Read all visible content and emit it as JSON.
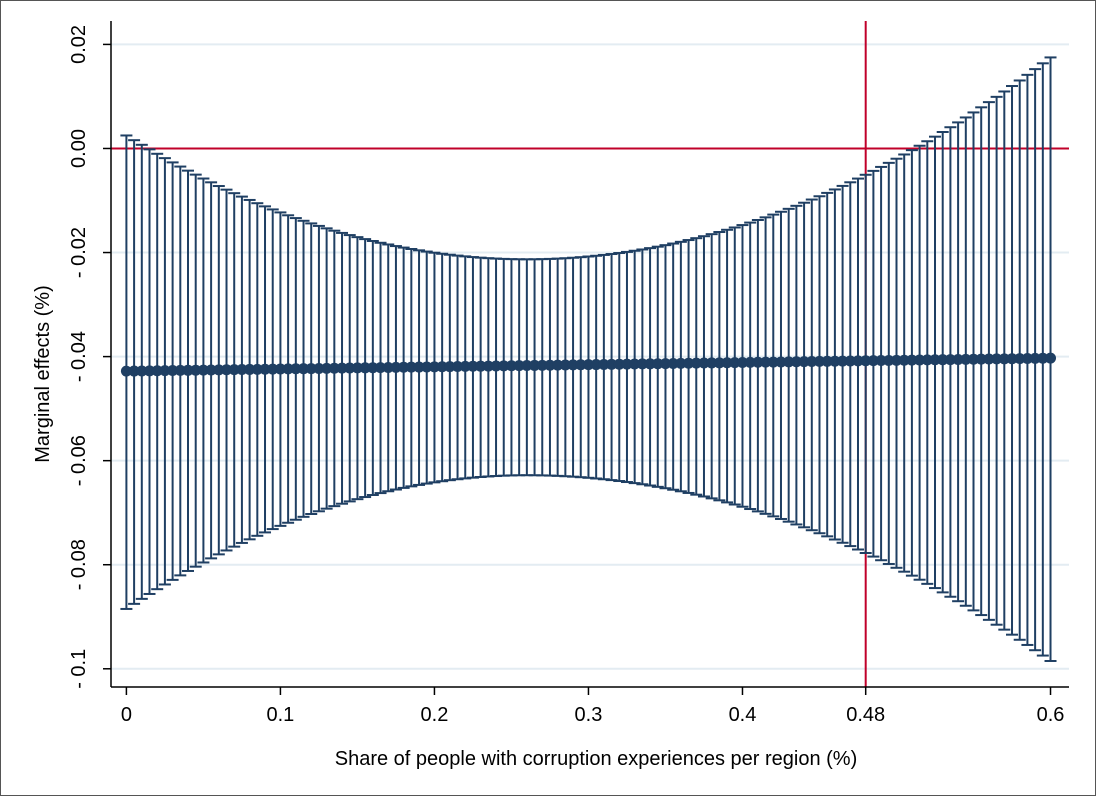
{
  "chart_data": {
    "type": "scatter",
    "xlabel": "Share of people with corruption experiences per region (%)",
    "ylabel": "Marginal effects (%)",
    "xlim": [
      -0.01,
      0.612
    ],
    "ylim": [
      -0.1035,
      0.0245
    ],
    "x_ticks": [
      {
        "value": 0,
        "label": "0"
      },
      {
        "value": 0.1,
        "label": "0.1"
      },
      {
        "value": 0.2,
        "label": "0.2"
      },
      {
        "value": 0.3,
        "label": "0.3"
      },
      {
        "value": 0.4,
        "label": "0.4"
      },
      {
        "value": 0.48,
        "label": "0.48"
      },
      {
        "value": 0.6,
        "label": "0.6"
      }
    ],
    "y_ticks": [
      {
        "value": 0.02,
        "label": "0.02"
      },
      {
        "value": 0.0,
        "label": "0.00"
      },
      {
        "value": -0.02,
        "label": "- 0.02"
      },
      {
        "value": -0.04,
        "label": "- 0.04"
      },
      {
        "value": -0.06,
        "label": "- 0.06"
      },
      {
        "value": -0.08,
        "label": "- 0.08"
      },
      {
        "value": -0.1,
        "label": "- 0.1"
      }
    ],
    "grid": true,
    "reference_lines": [
      {
        "axis": "y",
        "value": 0.0,
        "color": "#c0002a"
      },
      {
        "axis": "x",
        "value": 0.48,
        "color": "#c0002a"
      }
    ],
    "series": [
      {
        "type": "point_with_ci",
        "n_points": 121,
        "x_start": 0.0,
        "x_end": 0.6,
        "estimate": {
          "start": -0.0428,
          "end": -0.0403
        },
        "ci_upper": {
          "at_start": 0.0025,
          "at_min": -0.0213,
          "x_at_min": 0.26,
          "at_end": 0.0175
        },
        "ci_lower": {
          "at_start": -0.0885,
          "at_max": -0.0628,
          "x_at_max": 0.26,
          "at_end": -0.0985
        }
      }
    ],
    "colors": {
      "series": "#1f3f63",
      "reference": "#c0002a",
      "grid": "#e3ecf2",
      "axis": "#000000"
    }
  }
}
